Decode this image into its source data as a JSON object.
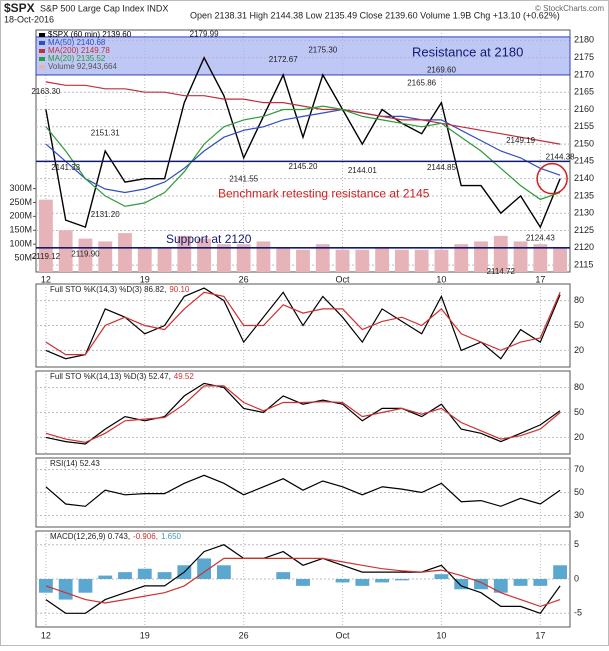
{
  "header": {
    "symbol": "$SPX",
    "name": "S&P 500 Large Cap Index INDX",
    "date": "18-Oct-2016",
    "quote": "Open 2138.31  High 2144.38  Low 2135.49  Close 2139.60  Volume 1.9B  Chg +13.10 (+0.62%)",
    "credit": "© StockCharts.com"
  },
  "chart_data": [
    {
      "type": "line",
      "categories": [
        "12",
        null,
        null,
        null,
        null,
        "19",
        null,
        null,
        null,
        null,
        "26",
        null,
        null,
        null,
        null,
        "Oct",
        null,
        null,
        null,
        null,
        "10",
        null,
        null,
        null,
        null,
        "17",
        null
      ],
      "series": [
        {
          "name": "$SPX (60 min) 2139.60",
          "color": "#000000",
          "values": [
            2160,
            2128,
            2126,
            2148,
            2139,
            2140,
            2140,
            2162,
            2175,
            2164,
            2146,
            2158,
            2170,
            2152,
            2170,
            2160,
            2150,
            2160,
            2156,
            2153,
            2162,
            2138,
            2138,
            2130,
            2135,
            2126,
            2140
          ]
        },
        {
          "name": "MA(50) 2140.68",
          "color": "#2f4fbf",
          "values": [
            2150,
            2145,
            2140,
            2137,
            2136,
            2137,
            2139,
            2143,
            2148,
            2152,
            2154,
            2155,
            2157,
            2158,
            2159,
            2160,
            2159,
            2158,
            2158,
            2157,
            2157,
            2154,
            2151,
            2148,
            2146,
            2143,
            2141
          ]
        },
        {
          "name": "MA(200) 2149.78",
          "color": "#c0303a",
          "values": [
            2168,
            2167,
            2167,
            2166,
            2166,
            2165,
            2165,
            2164,
            2164,
            2163,
            2163,
            2162,
            2162,
            2161,
            2160,
            2160,
            2159,
            2158,
            2157,
            2157,
            2156,
            2155,
            2154,
            2153,
            2152,
            2151,
            2150
          ]
        },
        {
          "name": "MA(20) 2135.52",
          "color": "#2f9a3a",
          "values": [
            2155,
            2148,
            2140,
            2135,
            2132,
            2133,
            2136,
            2142,
            2150,
            2155,
            2157,
            2158,
            2160,
            2160,
            2161,
            2160,
            2158,
            2157,
            2156,
            2155,
            2156,
            2152,
            2148,
            2143,
            2138,
            2134,
            2136
          ]
        },
        {
          "name": "Volume 92,943,664",
          "color": "#e6b4b8",
          "axis": "y2",
          "style": "bar",
          "values": [
            260,
            150,
            120,
            110,
            140,
            90,
            90,
            130,
            120,
            100,
            100,
            110,
            90,
            80,
            100,
            80,
            80,
            90,
            80,
            80,
            80,
            100,
            110,
            130,
            110,
            100,
            90
          ]
        }
      ],
      "ylim": [
        2113,
        2183
      ],
      "yticks": [
        2115,
        2120,
        2125,
        2130,
        2135,
        2140,
        2145,
        2150,
        2155,
        2160,
        2165,
        2170,
        2175,
        2180
      ],
      "y2lim": [
        0,
        870
      ],
      "y2ticks": [
        {
          "value": 50,
          "label": "50M"
        },
        {
          "value": 100,
          "label": "100M"
        },
        {
          "value": 150,
          "label": "150M"
        },
        {
          "value": 200,
          "label": "200M"
        },
        {
          "value": 250,
          "label": "250M"
        },
        {
          "value": 300,
          "label": "300M"
        }
      ],
      "grid": true,
      "hlines": [
        2145,
        2120
      ],
      "band": [
        2170,
        2181
      ],
      "annotations": {
        "resistance": "Resistance at 2180",
        "retest": "Benchmark retesting resistance at 2145",
        "support": "Support at 2120"
      },
      "price_labels": [
        "2163.30",
        "2119.12",
        "2141.33",
        "2119.90",
        "2131.20",
        "2151.31",
        "2179.99",
        "2141.55",
        "2172.67",
        "2145.20",
        "2175.30",
        "2144.01",
        "2165.86",
        "2144.85",
        "2169.60",
        "2114.72",
        "2149.19",
        "2124.43",
        "2144.38"
      ]
    },
    {
      "type": "line",
      "title": "Full STO %K(14,3) %D(3) 86.82,",
      "title_notes": [
        {
          "text": "90.10",
          "color": "#d03030"
        }
      ],
      "series": [
        {
          "color": "#000000",
          "values": [
            20,
            10,
            15,
            70,
            60,
            40,
            50,
            85,
            95,
            80,
            30,
            60,
            90,
            50,
            85,
            60,
            30,
            70,
            55,
            40,
            85,
            20,
            30,
            10,
            45,
            30,
            87
          ]
        },
        {
          "color": "#d03030",
          "values": [
            30,
            15,
            15,
            50,
            60,
            50,
            45,
            70,
            90,
            85,
            50,
            50,
            75,
            65,
            70,
            70,
            45,
            55,
            60,
            50,
            70,
            40,
            30,
            20,
            30,
            35,
            90
          ]
        }
      ],
      "ylim": [
        0,
        100
      ],
      "yticks": [
        20,
        50,
        80
      ],
      "grid": true
    },
    {
      "type": "line",
      "title": "Full STO %K(14,13) %D(3) 52.47,",
      "title_notes": [
        {
          "text": "49.52",
          "color": "#d03030"
        }
      ],
      "series": [
        {
          "color": "#000000",
          "values": [
            20,
            15,
            12,
            30,
            45,
            40,
            45,
            70,
            85,
            80,
            55,
            50,
            70,
            60,
            65,
            60,
            40,
            55,
            55,
            45,
            60,
            30,
            25,
            15,
            25,
            35,
            52
          ]
        },
        {
          "color": "#d03030",
          "values": [
            25,
            18,
            14,
            25,
            40,
            42,
            44,
            60,
            82,
            82,
            62,
            52,
            62,
            62,
            63,
            62,
            45,
            50,
            55,
            48,
            55,
            38,
            28,
            18,
            22,
            30,
            50
          ]
        }
      ],
      "ylim": [
        0,
        100
      ],
      "yticks": [
        20,
        50,
        80
      ],
      "grid": true
    },
    {
      "type": "line",
      "title": "RSI(14) 52.43",
      "title_notes": [],
      "series": [
        {
          "color": "#000000",
          "values": [
            55,
            40,
            38,
            52,
            48,
            49,
            49,
            58,
            65,
            58,
            48,
            55,
            62,
            52,
            60,
            55,
            48,
            55,
            53,
            50,
            58,
            42,
            43,
            38,
            45,
            40,
            52
          ]
        }
      ],
      "ylim": [
        20,
        80
      ],
      "yticks": [
        30,
        50,
        70
      ],
      "grid": true
    },
    {
      "type": "line",
      "title": "MACD(12,26,9) 0.743,",
      "title_notes": [
        {
          "text": "-0.906,",
          "color": "#d03030"
        },
        {
          "text": "1.650",
          "color": "#3a9ab8"
        }
      ],
      "series": [
        {
          "color": "#5aa8d0",
          "style": "bar",
          "values": [
            -2,
            -3,
            -2,
            0.5,
            1,
            1.5,
            1,
            2,
            3,
            2,
            0,
            0,
            1,
            -1,
            0,
            -0.5,
            -1,
            -0.5,
            -0.2,
            0,
            0.7,
            -1.5,
            -1.5,
            -2,
            -1,
            -1,
            2
          ]
        },
        {
          "color": "#000000",
          "values": [
            -3,
            -5,
            -5,
            -3,
            -2,
            -1,
            -1,
            1,
            4,
            5,
            3,
            3,
            4,
            2,
            3,
            2,
            1,
            1,
            1,
            1,
            2,
            -1,
            -2,
            -4,
            -4,
            -5,
            -1
          ]
        },
        {
          "color": "#d03030",
          "values": [
            -1,
            -2,
            -3,
            -3.5,
            -3,
            -2.5,
            -2,
            -1,
            1,
            3,
            3,
            3,
            3,
            3,
            3,
            2.5,
            2,
            1.5,
            1.2,
            1,
            1.3,
            0.5,
            -0.5,
            -2,
            -3,
            -4,
            -3
          ]
        }
      ],
      "ylim": [
        -7,
        7
      ],
      "yticks": [
        -5,
        0,
        5
      ],
      "grid": true
    }
  ]
}
